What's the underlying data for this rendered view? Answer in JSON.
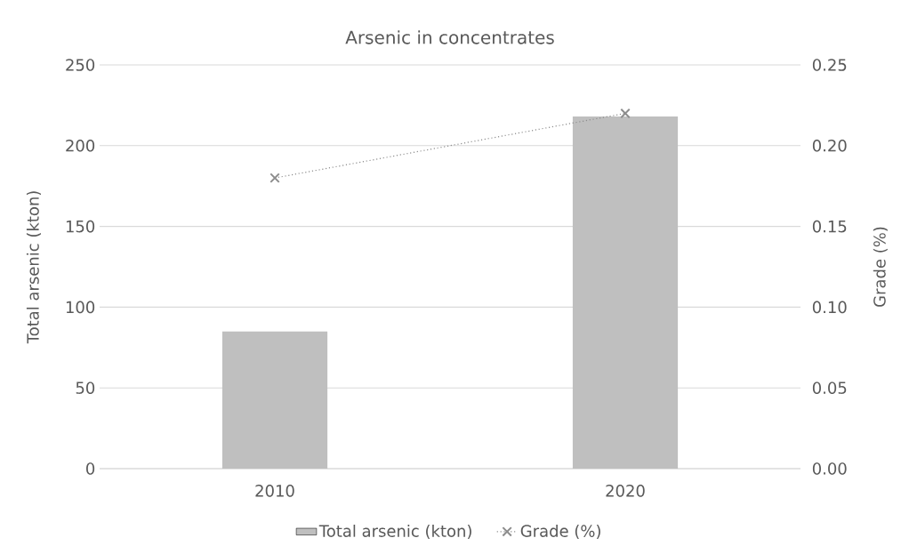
{
  "chart_data": {
    "type": "bar",
    "title": "Arsenic in concentrates",
    "ylabel": "Total arsenic (kton)",
    "y2label": "Grade (%)",
    "categories": [
      "2010",
      "2020"
    ],
    "series": [
      {
        "name": "Total arsenic (kton)",
        "color": "#bfbfbf",
        "values": [
          85,
          218
        ]
      },
      {
        "name": "Grade (%)",
        "type": "line",
        "axis": "y2",
        "color": "#8c8c8c",
        "values": [
          0.18,
          0.22
        ],
        "marker": "cross",
        "line_style": "dotted"
      }
    ],
    "ylim": [
      0,
      250
    ],
    "yticks": [
      0,
      50,
      100,
      150,
      200,
      250
    ],
    "y2lim": [
      0,
      0.25
    ],
    "y2ticks": [
      {
        "value": 0,
        "label": "0.00"
      },
      {
        "value": 0.05,
        "label": "0.05"
      },
      {
        "value": 0.1,
        "label": "0.10"
      },
      {
        "value": 0.15,
        "label": "0.15"
      },
      {
        "value": 0.2,
        "label": "0.20"
      },
      {
        "value": 0.25,
        "label": "0.25"
      }
    ],
    "grid": "y",
    "legend": "bottom"
  }
}
